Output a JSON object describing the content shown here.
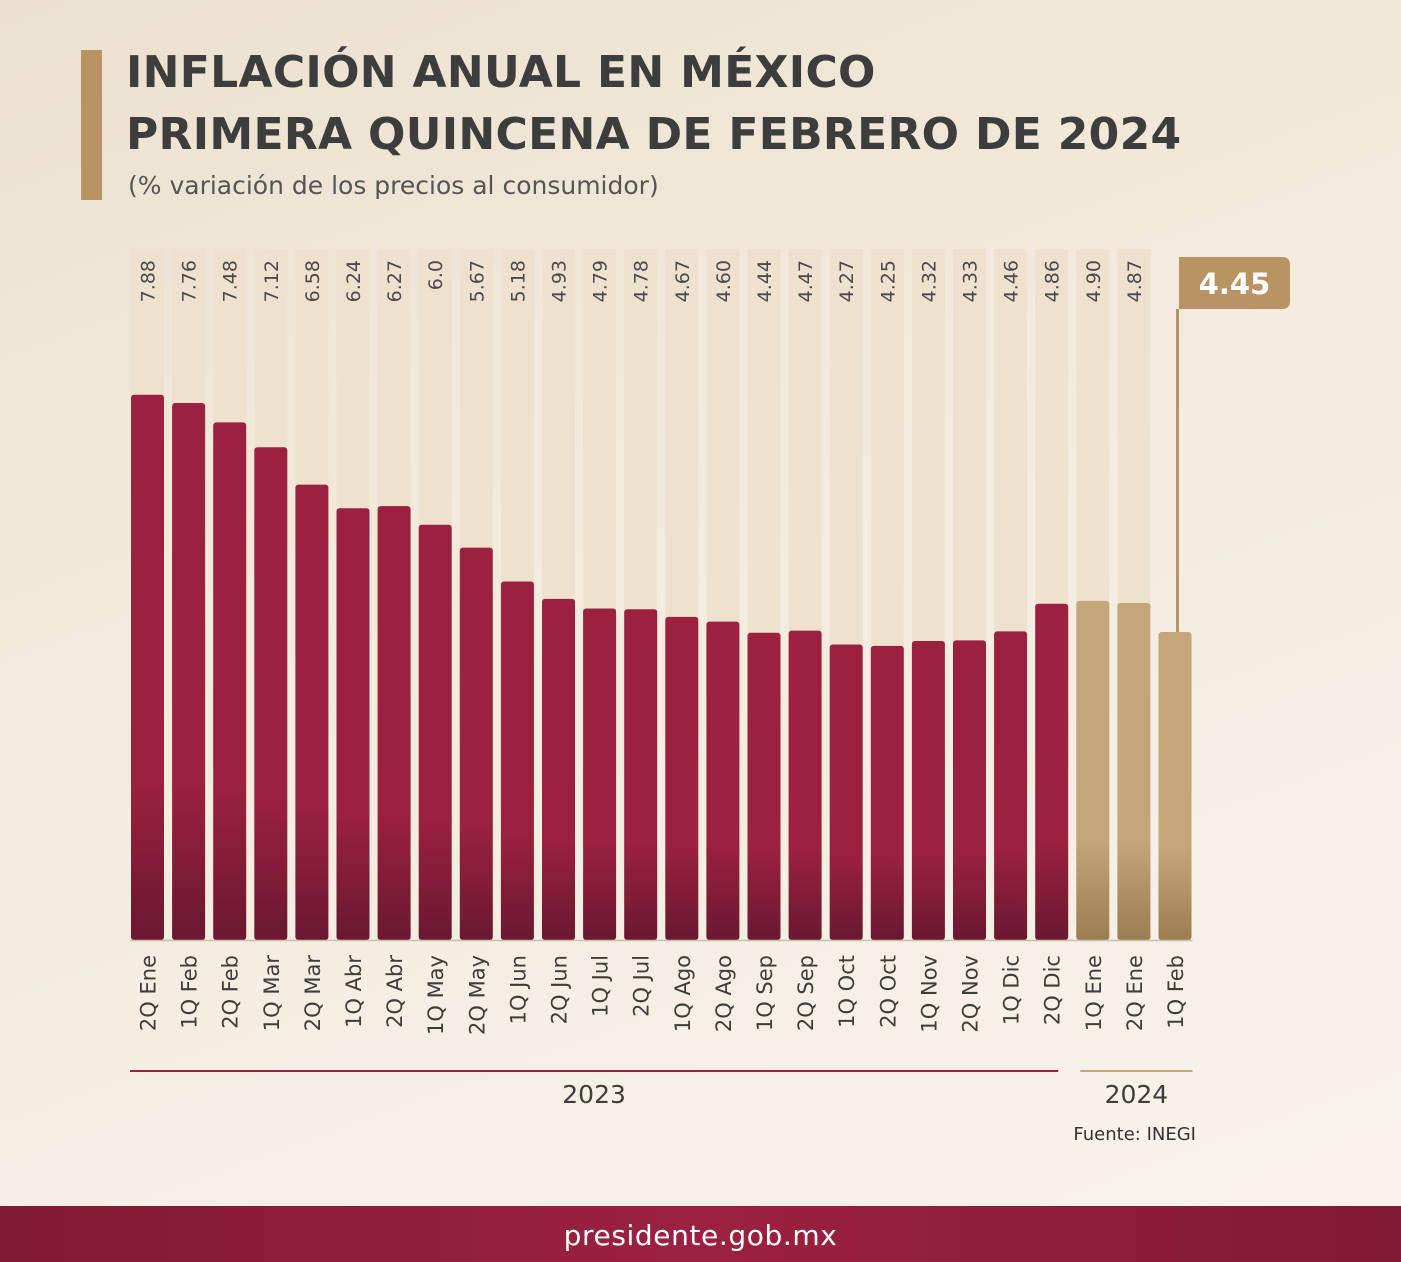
{
  "header": {
    "title_line1": "INFLACIÓN ANUAL EN MÉXICO",
    "title_line2": "PRIMERA QUINCENA DE FEBRERO DE 2024",
    "subtitle": "(% variación de los precios al consumidor)"
  },
  "source": "Fuente: INEGI",
  "footer": {
    "url": "presidente.gob.mx"
  },
  "colors": {
    "bar_2023": "#9c2140",
    "bar_2024": "#c4a679",
    "column_bg": "#eee2ce",
    "accent": "#b89464"
  },
  "chart_data": {
    "type": "bar",
    "categories": [
      "2Q Ene",
      "1Q Feb",
      "2Q Feb",
      "1Q Mar",
      "2Q Mar",
      "1Q Abr",
      "2Q Abr",
      "1Q May",
      "2Q May",
      "1Q Jun",
      "2Q Jun",
      "1Q Jul",
      "2Q Jul",
      "1Q Ago",
      "2Q Ago",
      "1Q Sep",
      "2Q Sep",
      "1Q Oct",
      "2Q Oct",
      "1Q Nov",
      "2Q Nov",
      "1Q Dic",
      "2Q Dic",
      "1Q Ene",
      "2Q Ene",
      "1Q Feb"
    ],
    "values": [
      7.88,
      7.76,
      7.48,
      7.12,
      6.58,
      6.24,
      6.27,
      6.0,
      5.67,
      5.18,
      4.93,
      4.79,
      4.78,
      4.67,
      4.6,
      4.44,
      4.47,
      4.27,
      4.25,
      4.32,
      4.33,
      4.46,
      4.86,
      4.9,
      4.87,
      4.45
    ],
    "value_labels": [
      "7.88",
      "7.76",
      "7.48",
      "7.12",
      "6.58",
      "6.24",
      "6.27",
      "6.0",
      "5.67",
      "5.18",
      "4.93",
      "4.79",
      "4.78",
      "4.67",
      "4.60",
      "4.44",
      "4.47",
      "4.27",
      "4.25",
      "4.32",
      "4.33",
      "4.46",
      "4.86",
      "4.90",
      "4.87",
      "4.45"
    ],
    "years": [
      "2023",
      "2024"
    ],
    "year_of_bar": [
      "2023",
      "2023",
      "2023",
      "2023",
      "2023",
      "2023",
      "2023",
      "2023",
      "2023",
      "2023",
      "2023",
      "2023",
      "2023",
      "2023",
      "2023",
      "2023",
      "2023",
      "2023",
      "2023",
      "2023",
      "2023",
      "2023",
      "2023",
      "2024",
      "2024",
      "2024"
    ],
    "highlight": {
      "label": "4.45",
      "category": "1Q Feb"
    },
    "ylim": [
      0,
      8
    ],
    "grid": false,
    "legend": "none"
  }
}
